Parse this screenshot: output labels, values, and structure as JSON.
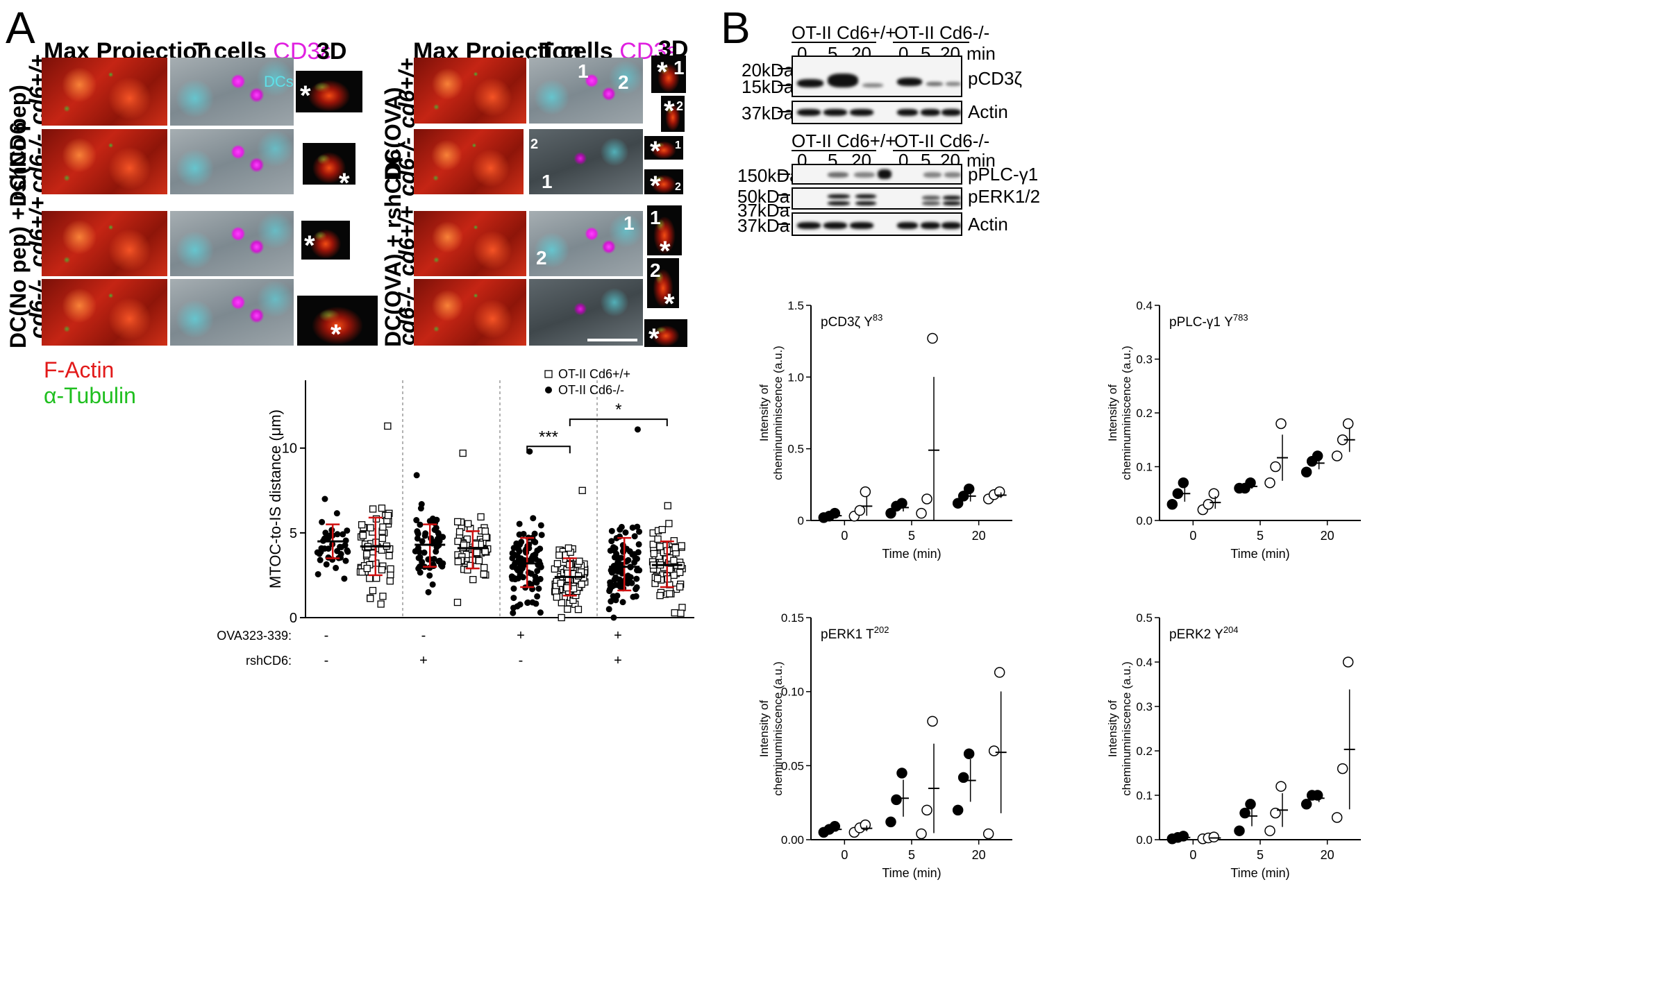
{
  "panel_a": {
    "letter": "A",
    "headers_left": {
      "max_projection": "Max Projection",
      "t_cells": "T cells",
      "cd3": "CD3ε",
      "three_d": "3D",
      "dcs": "DCs"
    },
    "headers_right": {
      "max_projection": "Max Projection",
      "t_cells": "T cells",
      "cd3": "CD3ε",
      "three_d": "3D"
    },
    "row_labels": {
      "dc_nopep": "DC(No pep)",
      "dc_nopep_rsh": "DC(No pep) + rshCD6",
      "dc_ova": "DC(OVA)",
      "dc_ova_rsh": "DC(OVA) + rshCD6",
      "wt": "cd6+/+",
      "ko": "cd6-/-"
    },
    "legend": {
      "f_actin": "F-Actin",
      "tubulin": "α-Tubulin"
    },
    "markers": {
      "star": "*",
      "one": "1",
      "two": "2"
    }
  },
  "panel_b": {
    "letter": "B",
    "blot_top": {
      "wt_label": "OT-II Cd6+/+",
      "ko_label": "OT-II Cd6-/-",
      "times": [
        "0",
        "5",
        "20",
        "0",
        "5",
        "20"
      ],
      "time_unit": "min",
      "mw": [
        "20kDa",
        "15kDa",
        "37kDa"
      ],
      "proteins": [
        "pCD3ζ",
        "Actin"
      ]
    },
    "blot_bottom": {
      "wt_label": "OT-II Cd6+/+",
      "ko_label": "OT-II Cd6-/-",
      "times": [
        "0",
        "5",
        "20",
        "0",
        "5",
        "20"
      ],
      "time_unit": "min",
      "mw": [
        "150kDa",
        "50kDa",
        "37kDa",
        "37kDa"
      ],
      "proteins": [
        "pPLC-γ1",
        "pERK1/2",
        "Actin"
      ]
    }
  },
  "chart_data": [
    {
      "type": "scatter",
      "id": "mtoc",
      "ylabel": "MTOC-to-IS distance (μm)",
      "ylim": [
        0,
        14
      ],
      "yticks": [
        0,
        5,
        10
      ],
      "legend": [
        {
          "name": "OT-II Cd6+/+",
          "marker": "open-square"
        },
        {
          "name": "OT-II Cd6-/-",
          "marker": "filled-circle"
        }
      ],
      "legend_placement": "top-right",
      "condition_rows": [
        {
          "label": "OVA323-339:",
          "values": [
            "-",
            "-",
            "+",
            "+"
          ]
        },
        {
          "label": "rshCD6:",
          "values": [
            "-",
            "+",
            "-",
            "+"
          ]
        }
      ],
      "groups": [
        {
          "series": "OT-II Cd6-/-",
          "mean": 4.5,
          "sd_low": 3.5,
          "sd_high": 5.5,
          "n": 40,
          "min": 2.3,
          "max": 7.0
        },
        {
          "series": "OT-II Cd6+/+",
          "mean": 4.2,
          "sd_low": 2.5,
          "sd_high": 5.9,
          "n": 60,
          "min": 0.8,
          "max": 11.3
        },
        {
          "series": "OT-II Cd6-/-",
          "mean": 4.3,
          "sd_low": 3.0,
          "sd_high": 5.5,
          "n": 55,
          "min": 1.5,
          "max": 8.4
        },
        {
          "series": "OT-II Cd6+/+",
          "mean": 4.1,
          "sd_low": 2.9,
          "sd_high": 5.1,
          "n": 60,
          "min": 0.9,
          "max": 9.7
        },
        {
          "series": "OT-II Cd6-/-",
          "mean": 3.2,
          "sd_low": 1.8,
          "sd_high": 4.7,
          "n": 90,
          "min": 0.3,
          "max": 9.8
        },
        {
          "series": "OT-II Cd6+/+",
          "mean": 2.4,
          "sd_low": 1.3,
          "sd_high": 3.5,
          "n": 80,
          "min": 0.0,
          "max": 7.5
        },
        {
          "series": "OT-II Cd6-/-",
          "mean": 3.0,
          "sd_low": 1.6,
          "sd_high": 4.7,
          "n": 90,
          "min": 0.5,
          "max": 11.1
        },
        {
          "series": "OT-II Cd6+/+",
          "mean": 3.1,
          "sd_low": 1.8,
          "sd_high": 4.5,
          "n": 80,
          "min": 0.6,
          "max": 6.6
        }
      ],
      "significance": [
        {
          "from": 4,
          "to": 5,
          "label": "***",
          "y": 10.1
        },
        {
          "from": 5,
          "to": 7,
          "label": "*",
          "y": 11.7
        }
      ]
    },
    {
      "type": "scatter",
      "id": "pcd3",
      "title": "pCD3ζ Y83",
      "xlabel": "Time (min)",
      "ylabel": "Intensity of cheminuminiscence (a.u.)",
      "x_categories": [
        "0",
        "5",
        "20"
      ],
      "ylim": [
        0,
        1.5
      ],
      "yticks": [
        0,
        0.5,
        1.0,
        1.5
      ],
      "ytick_labels": [
        "0",
        "0.5",
        "1.0",
        "1.5"
      ],
      "series": [
        {
          "name": "OT-II Cd6-/-",
          "marker": "filled-circle",
          "values": [
            [
              0.02,
              0.03,
              0.05
            ],
            [
              0.05,
              0.1,
              0.12
            ],
            [
              0.12,
              0.17,
              0.22
            ]
          ]
        },
        {
          "name": "OT-II Cd6+/+",
          "marker": "open-circle",
          "values": [
            [
              0.03,
              0.07,
              0.2
            ],
            [
              0.05,
              0.15,
              1.27
            ],
            [
              0.15,
              0.18,
              0.2
            ]
          ]
        }
      ]
    },
    {
      "type": "scatter",
      "id": "pplc",
      "title": "pPLC-γ1 Y783",
      "xlabel": "Time (min)",
      "ylabel": "Intensity of cheminuminiscence (a.u.)",
      "x_categories": [
        "0",
        "5",
        "20"
      ],
      "ylim": [
        0,
        0.4
      ],
      "yticks": [
        0,
        0.1,
        0.2,
        0.3,
        0.4
      ],
      "ytick_labels": [
        "0.0",
        "0.1",
        "0.2",
        "0.3",
        "0.4"
      ],
      "series": [
        {
          "name": "OT-II Cd6-/-",
          "marker": "filled-circle",
          "values": [
            [
              0.03,
              0.05,
              0.07
            ],
            [
              0.06,
              0.06,
              0.07
            ],
            [
              0.09,
              0.11,
              0.12
            ]
          ]
        },
        {
          "name": "OT-II Cd6+/+",
          "marker": "open-circle",
          "values": [
            [
              0.02,
              0.03,
              0.05
            ],
            [
              0.07,
              0.1,
              0.18
            ],
            [
              0.12,
              0.15,
              0.18
            ]
          ]
        }
      ]
    },
    {
      "type": "scatter",
      "id": "perk1",
      "title": "pERK1 T202",
      "xlabel": "Time (min)",
      "ylabel": "Intensity of cheminuminiscence (a.u.)",
      "x_categories": [
        "0",
        "5",
        "20"
      ],
      "ylim": [
        0,
        0.15
      ],
      "yticks": [
        0,
        0.05,
        0.1,
        0.15
      ],
      "ytick_labels": [
        "0.00",
        "0.05",
        "0.10",
        "0.15"
      ],
      "series": [
        {
          "name": "OT-II Cd6-/-",
          "marker": "filled-circle",
          "values": [
            [
              0.005,
              0.007,
              0.009
            ],
            [
              0.012,
              0.027,
              0.045
            ],
            [
              0.02,
              0.042,
              0.058
            ]
          ]
        },
        {
          "name": "OT-II Cd6+/+",
          "marker": "open-circle",
          "values": [
            [
              0.005,
              0.008,
              0.01
            ],
            [
              0.004,
              0.02,
              0.08
            ],
            [
              0.004,
              0.06,
              0.113
            ]
          ]
        }
      ]
    },
    {
      "type": "scatter",
      "id": "perk2",
      "title": "pERK2 Y204",
      "xlabel": "Time (min)",
      "ylabel": "Intensity of cheminuminiscence (a.u.)",
      "x_categories": [
        "0",
        "5",
        "20"
      ],
      "ylim": [
        0,
        0.5
      ],
      "yticks": [
        0,
        0.1,
        0.2,
        0.3,
        0.4,
        0.5
      ],
      "ytick_labels": [
        "0.0",
        "0.1",
        "0.2",
        "0.3",
        "0.4",
        "0.5"
      ],
      "series": [
        {
          "name": "OT-II Cd6-/-",
          "marker": "filled-circle",
          "values": [
            [
              0.002,
              0.005,
              0.008
            ],
            [
              0.02,
              0.06,
              0.08
            ],
            [
              0.08,
              0.1,
              0.1
            ]
          ]
        },
        {
          "name": "OT-II Cd6+/+",
          "marker": "open-circle",
          "values": [
            [
              0.002,
              0.004,
              0.006
            ],
            [
              0.02,
              0.06,
              0.12
            ],
            [
              0.05,
              0.16,
              0.4
            ]
          ]
        }
      ]
    }
  ]
}
